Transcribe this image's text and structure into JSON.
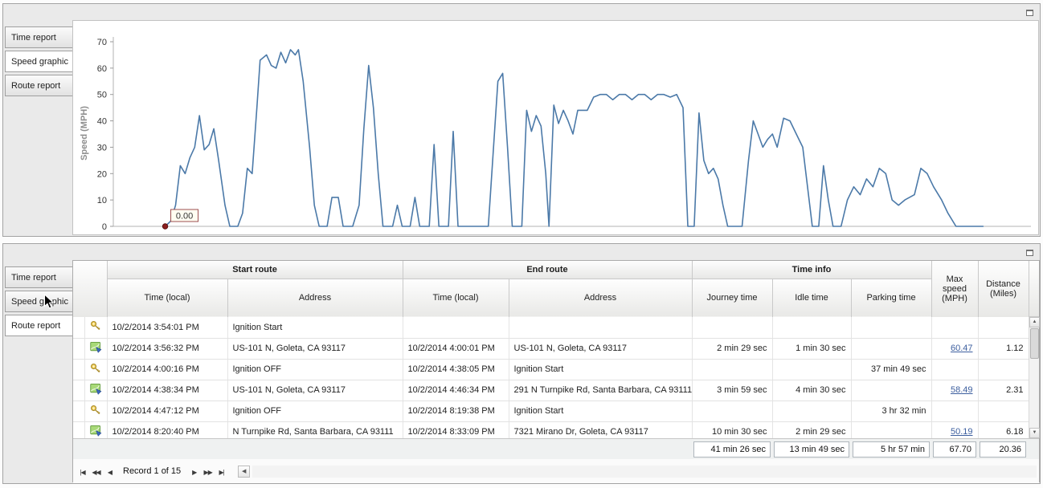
{
  "top_panel": {
    "tabs": [
      {
        "label": "Time report"
      },
      {
        "label": "Speed graphic"
      },
      {
        "label": "Route report"
      }
    ],
    "active_tab": "Speed graphic"
  },
  "chart_data": {
    "type": "line",
    "title": "",
    "xlabel": "",
    "ylabel": "Speed (MPH)",
    "ylim": [
      0,
      70
    ],
    "yticks": [
      0,
      10,
      20,
      30,
      40,
      50,
      60,
      70
    ],
    "grid": false,
    "legend": false,
    "line_color": "#4b79a8",
    "annotation": {
      "label": "0.00",
      "point_index": 0,
      "marker_color": "#8b2020"
    },
    "points": [
      [
        65,
        0
      ],
      [
        72,
        2
      ],
      [
        78,
        8
      ],
      [
        84,
        23
      ],
      [
        90,
        20
      ],
      [
        96,
        26
      ],
      [
        102,
        30
      ],
      [
        108,
        42
      ],
      [
        114,
        29
      ],
      [
        120,
        31
      ],
      [
        126,
        37
      ],
      [
        132,
        25
      ],
      [
        140,
        8
      ],
      [
        146,
        0
      ],
      [
        156,
        0
      ],
      [
        162,
        5
      ],
      [
        168,
        22
      ],
      [
        174,
        20
      ],
      [
        180,
        45
      ],
      [
        184,
        63
      ],
      [
        192,
        65
      ],
      [
        198,
        61
      ],
      [
        204,
        60
      ],
      [
        210,
        66
      ],
      [
        216,
        62
      ],
      [
        222,
        67
      ],
      [
        228,
        65
      ],
      [
        232,
        67
      ],
      [
        238,
        55
      ],
      [
        246,
        30
      ],
      [
        252,
        8
      ],
      [
        258,
        0
      ],
      [
        268,
        0
      ],
      [
        274,
        11
      ],
      [
        282,
        11
      ],
      [
        288,
        0
      ],
      [
        300,
        0
      ],
      [
        308,
        8
      ],
      [
        314,
        37
      ],
      [
        320,
        61
      ],
      [
        326,
        45
      ],
      [
        332,
        20
      ],
      [
        338,
        0
      ],
      [
        350,
        0
      ],
      [
        356,
        8
      ],
      [
        362,
        0
      ],
      [
        372,
        0
      ],
      [
        378,
        11
      ],
      [
        384,
        0
      ],
      [
        396,
        0
      ],
      [
        402,
        31
      ],
      [
        408,
        0
      ],
      [
        420,
        0
      ],
      [
        426,
        36
      ],
      [
        432,
        0
      ],
      [
        444,
        0
      ],
      [
        456,
        0
      ],
      [
        470,
        0
      ],
      [
        482,
        55
      ],
      [
        488,
        58
      ],
      [
        494,
        30
      ],
      [
        500,
        0
      ],
      [
        512,
        0
      ],
      [
        518,
        44
      ],
      [
        524,
        36
      ],
      [
        530,
        42
      ],
      [
        536,
        38
      ],
      [
        542,
        20
      ],
      [
        546,
        0
      ],
      [
        552,
        46
      ],
      [
        558,
        39
      ],
      [
        564,
        44
      ],
      [
        570,
        40
      ],
      [
        576,
        35
      ],
      [
        582,
        44
      ],
      [
        594,
        44
      ],
      [
        602,
        49
      ],
      [
        610,
        50
      ],
      [
        618,
        50
      ],
      [
        626,
        48
      ],
      [
        634,
        50
      ],
      [
        642,
        50
      ],
      [
        650,
        48
      ],
      [
        658,
        50
      ],
      [
        666,
        50
      ],
      [
        674,
        48
      ],
      [
        682,
        50
      ],
      [
        690,
        50
      ],
      [
        698,
        49
      ],
      [
        706,
        50
      ],
      [
        714,
        45
      ],
      [
        720,
        0
      ],
      [
        728,
        0
      ],
      [
        734,
        43
      ],
      [
        740,
        25
      ],
      [
        746,
        20
      ],
      [
        752,
        22
      ],
      [
        758,
        18
      ],
      [
        764,
        8
      ],
      [
        770,
        0
      ],
      [
        780,
        0
      ],
      [
        788,
        0
      ],
      [
        796,
        25
      ],
      [
        802,
        40
      ],
      [
        808,
        35
      ],
      [
        814,
        30
      ],
      [
        820,
        33
      ],
      [
        826,
        35
      ],
      [
        832,
        30
      ],
      [
        840,
        41
      ],
      [
        848,
        40
      ],
      [
        856,
        35
      ],
      [
        864,
        30
      ],
      [
        876,
        0
      ],
      [
        884,
        0
      ],
      [
        890,
        23
      ],
      [
        896,
        10
      ],
      [
        902,
        0
      ],
      [
        912,
        0
      ],
      [
        920,
        10
      ],
      [
        928,
        15
      ],
      [
        936,
        12
      ],
      [
        944,
        18
      ],
      [
        952,
        15
      ],
      [
        960,
        22
      ],
      [
        968,
        20
      ],
      [
        976,
        10
      ],
      [
        984,
        8
      ],
      [
        992,
        10
      ],
      [
        1004,
        12
      ],
      [
        1012,
        22
      ],
      [
        1020,
        20
      ],
      [
        1028,
        15
      ],
      [
        1038,
        10
      ],
      [
        1046,
        5
      ],
      [
        1056,
        0
      ],
      [
        1090,
        0
      ]
    ]
  },
  "bottom_panel": {
    "tabs": [
      {
        "label": "Time report"
      },
      {
        "label": "Speed graphic"
      },
      {
        "label": "Route report"
      }
    ],
    "active_tab": "Route report",
    "table": {
      "band_headers": [
        "Start route",
        "End route",
        "Time info"
      ],
      "column_headers": [
        "Time (local)",
        "Address",
        "Time (local)",
        "Address",
        "Journey time",
        "Idle time",
        "Parking time"
      ],
      "max_speed_header": "Max speed (MPH)",
      "distance_header": "Distance (Miles)",
      "rows": [
        {
          "icon": "key",
          "start_time": "10/2/2014 3:54:01 PM",
          "start_address": "Ignition Start",
          "end_time": "",
          "end_address": "",
          "journey": "",
          "idle": "",
          "parking": "",
          "max_speed": "",
          "distance": ""
        },
        {
          "icon": "route",
          "start_time": "10/2/2014 3:56:32 PM",
          "start_address": "US-101 N, Goleta, CA 93117",
          "end_time": "10/2/2014 4:00:01 PM",
          "end_address": "US-101 N, Goleta, CA 93117",
          "journey": "2 min 29 sec",
          "idle": "1 min 30 sec",
          "parking": "",
          "max_speed": "60.47",
          "distance": "1.12"
        },
        {
          "icon": "key",
          "start_time": "10/2/2014 4:00:16 PM",
          "start_address": "Ignition OFF",
          "end_time": "10/2/2014 4:38:05 PM",
          "end_address": "Ignition Start",
          "journey": "",
          "idle": "",
          "parking": "37 min 49 sec",
          "max_speed": "",
          "distance": ""
        },
        {
          "icon": "route",
          "start_time": "10/2/2014 4:38:34 PM",
          "start_address": "US-101 N, Goleta, CA 93117",
          "end_time": "10/2/2014 4:46:34 PM",
          "end_address": "291 N Turnpike Rd, Santa Barbara, CA 93111",
          "journey": "3 min 59 sec",
          "idle": "4 min 30 sec",
          "parking": "",
          "max_speed": "58.49",
          "distance": "2.31"
        },
        {
          "icon": "key",
          "start_time": "10/2/2014 4:47:12 PM",
          "start_address": "Ignition OFF",
          "end_time": "10/2/2014 8:19:38 PM",
          "end_address": "Ignition Start",
          "journey": "",
          "idle": "",
          "parking": "3 hr 32 min",
          "max_speed": "",
          "distance": ""
        },
        {
          "icon": "route",
          "start_time": "10/2/2014 8:20:40 PM",
          "start_address": "N Turnpike Rd, Santa Barbara, CA 93111",
          "end_time": "10/2/2014 8:33:09 PM",
          "end_address": "7321 Mirano Dr, Goleta, CA 93117",
          "journey": "10 min 30 sec",
          "idle": "2 min 29 sec",
          "parking": "",
          "max_speed": "50.19",
          "distance": "6.18"
        }
      ],
      "summary": {
        "journey": "41 min 26 sec",
        "idle": "13 min 49 sec",
        "parking": "5 hr 57 min",
        "max_speed": "67.70",
        "distance": "20.36"
      }
    },
    "pager": {
      "buttons_left": [
        "|◀",
        "◀◀",
        "◀"
      ],
      "record_text": "Record 1 of 15",
      "buttons_right": [
        "▶",
        "▶▶",
        "▶|"
      ],
      "hscroll_left": "◀"
    }
  }
}
